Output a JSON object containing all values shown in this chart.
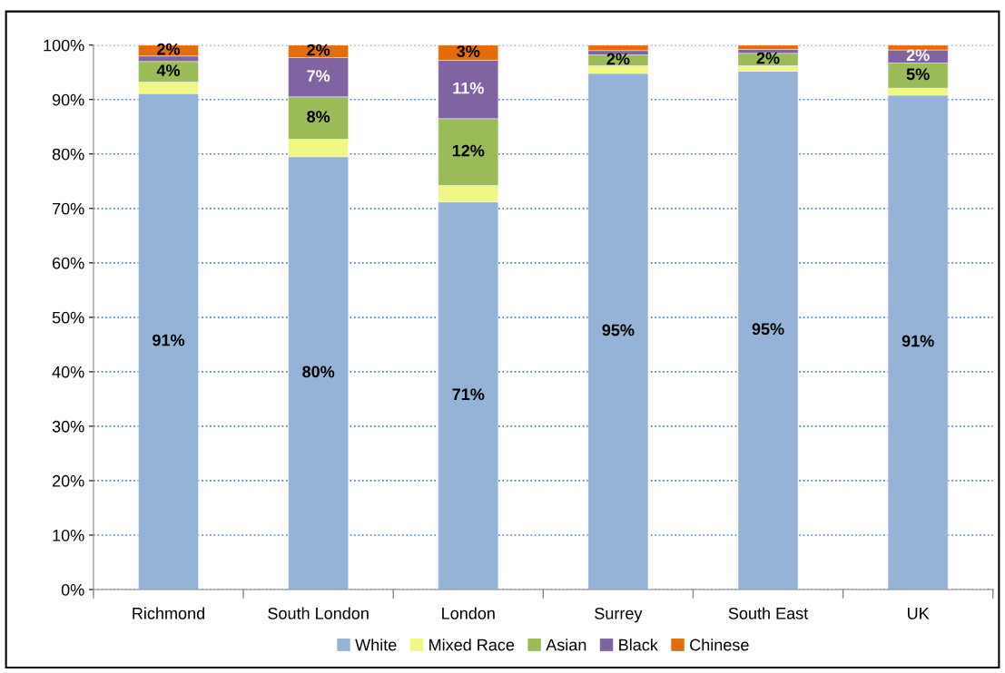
{
  "chart_data": {
    "type": "bar",
    "stacked": true,
    "categories": [
      "Richmond",
      "South London",
      "London",
      "Surrey",
      "South East",
      "UK"
    ],
    "series": [
      {
        "name": "White",
        "color": "#95b3d7",
        "values": [
          91.1,
          79.5,
          71.2,
          94.8,
          95.2,
          90.8
        ],
        "value_labels": [
          "91%",
          "80%",
          "71%",
          "95%",
          "95%",
          "91%"
        ]
      },
      {
        "name": "Mixed Race",
        "color": "#f0f784",
        "values": [
          2.1,
          3.2,
          3.0,
          1.4,
          1.0,
          1.3
        ],
        "value_labels": [
          null,
          null,
          null,
          null,
          null,
          null
        ]
      },
      {
        "name": "Asian",
        "color": "#9bbb59",
        "values": [
          3.8,
          7.8,
          12.3,
          2.0,
          2.3,
          4.6
        ],
        "value_labels": [
          "4%",
          "8%",
          "12%",
          "2%",
          "2%",
          "5%"
        ]
      },
      {
        "name": "Black",
        "color": "#8064a2",
        "values": [
          1.0,
          7.2,
          10.7,
          0.8,
          0.7,
          2.4
        ],
        "value_labels": [
          null,
          "7%",
          "11%",
          null,
          null,
          "2%"
        ]
      },
      {
        "name": "Chinese",
        "color": "#e46c0a",
        "values": [
          2.0,
          2.3,
          2.8,
          1.0,
          0.8,
          0.9
        ],
        "value_labels": [
          "2%",
          "2%",
          "3%",
          null,
          null,
          null
        ]
      }
    ],
    "ylim": [
      0,
      100
    ],
    "yticks": [
      {
        "value": 0,
        "label": "0%"
      },
      {
        "value": 10,
        "label": "10%"
      },
      {
        "value": 20,
        "label": "20%"
      },
      {
        "value": 30,
        "label": "30%"
      },
      {
        "value": 40,
        "label": "40%"
      },
      {
        "value": 50,
        "label": "50%"
      },
      {
        "value": 60,
        "label": "60%"
      },
      {
        "value": 70,
        "label": "70%"
      },
      {
        "value": 80,
        "label": "80%"
      },
      {
        "value": 90,
        "label": "90%"
      },
      {
        "value": 100,
        "label": "100%"
      }
    ],
    "grid": "y",
    "legend": "bottom"
  }
}
